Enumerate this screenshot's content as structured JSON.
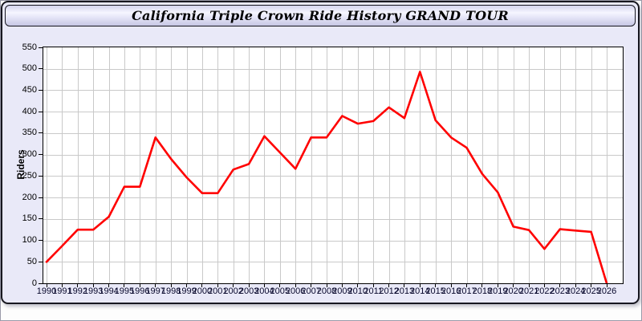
{
  "header": {
    "title": "California Triple Crown Ride History GRAND TOUR"
  },
  "chart_data": {
    "type": "line",
    "title": "California Triple Crown Ride History GRAND TOUR",
    "xlabel": "",
    "ylabel": "Riders",
    "categories": [
      "1990",
      "1991",
      "1992",
      "1993",
      "1994",
      "1995",
      "1996",
      "1997",
      "1998",
      "1999",
      "2000",
      "2001",
      "2002",
      "2003",
      "2004",
      "2005",
      "2006",
      "2007",
      "2008",
      "2009",
      "2010",
      "2011",
      "2012",
      "2013",
      "2014",
      "2015",
      "2016",
      "2017",
      "2018",
      "2019",
      "2020",
      "2021",
      "2022",
      "2023",
      "2024",
      "2025",
      "2026"
    ],
    "series": [
      {
        "name": "Riders",
        "values": [
          50,
          87,
          125,
          125,
          155,
          225,
          225,
          340,
          290,
          247,
          210,
          210,
          265,
          278,
          343,
          305,
          267,
          340,
          340,
          390,
          372,
          378,
          410,
          385,
          493,
          380,
          340,
          316,
          255,
          212,
          132,
          124,
          80,
          126,
          123,
          120,
          0
        ]
      }
    ],
    "ylim": [
      0,
      550
    ],
    "ytick_step": 50,
    "grid": true,
    "legend_position": "none",
    "line_color": "#ff0000",
    "grid_color": "#c9c9c9",
    "axis_color": "#000000",
    "plot_bg": "#ffffff",
    "panel_bg": "#e9e9f8"
  }
}
